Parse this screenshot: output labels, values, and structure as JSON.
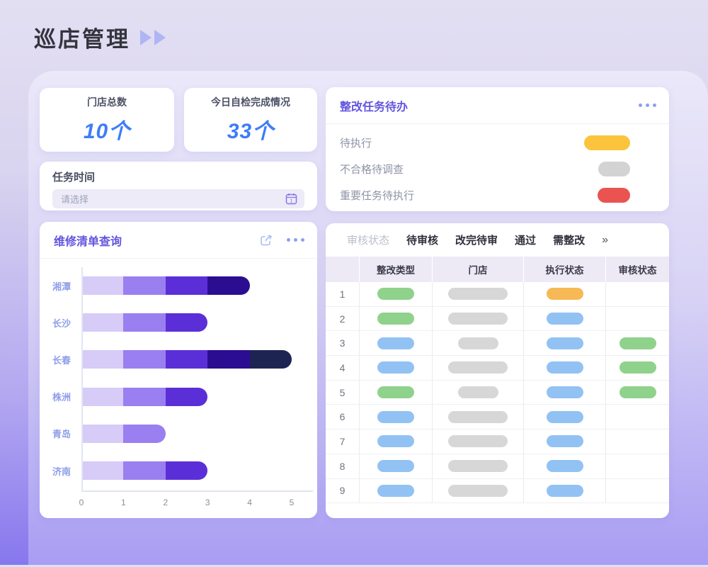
{
  "page": {
    "title": "巡店管理"
  },
  "stats": [
    {
      "label": "门店总数",
      "value": "10个"
    },
    {
      "label": "今日自检完成情况",
      "value": "33个"
    }
  ],
  "task_time": {
    "label": "任务时间",
    "placeholder": "请选择",
    "icon": "calendar-icon"
  },
  "repair_panel": {
    "title": "维修清单查询",
    "icons": [
      "share-icon",
      "more-icon"
    ]
  },
  "chart_data": {
    "type": "bar",
    "orientation": "horizontal-stacked",
    "title": "维修清单查询",
    "categories": [
      "湘潭",
      "长沙",
      "长春",
      "株洲",
      "青岛",
      "济南"
    ],
    "stacked_values": [
      [
        1,
        1,
        1,
        1
      ],
      [
        1,
        1,
        1
      ],
      [
        1,
        1,
        1,
        1,
        1
      ],
      [
        1,
        1,
        1
      ],
      [
        1,
        1
      ],
      [
        1,
        1,
        1
      ]
    ],
    "totals": [
      4,
      3,
      5,
      3,
      2,
      3
    ],
    "xlim": [
      0,
      5
    ],
    "x_ticks": [
      "0",
      "1",
      "2",
      "3",
      "4",
      "5"
    ],
    "grid": false,
    "segment_colors": [
      "#d7cbf7",
      "#9a7ff0",
      "#5b2fd8",
      "#2b0d92",
      "#1e2452"
    ],
    "label_color": "#8f9fe9"
  },
  "todo_panel": {
    "title": "整改任务待办",
    "more_icon": "more-icon",
    "items": [
      {
        "label": "待执行",
        "color": "#fcc43d",
        "pill_width": 65
      },
      {
        "label": "不合格待调查",
        "color": "#d3d3d3",
        "pill_width": 45
      },
      {
        "label": "重要任务待执行",
        "color": "#ea5350",
        "pill_width": 46
      }
    ]
  },
  "table_panel": {
    "filter_label": "审核状态",
    "tabs": [
      "待审核",
      "改完待审",
      "通过",
      "需整改"
    ],
    "overflow_glyph": "»",
    "columns": [
      "",
      "整改类型",
      "门店",
      "执行状态",
      "审核状态"
    ],
    "pill_colors": {
      "green": "#8fd28c",
      "blue": "#92c2f4",
      "orange": "#f6b955",
      "gray": "#d7d7d7"
    },
    "rows": [
      {
        "num": "1",
        "type": "green",
        "store_size": "wide",
        "exec": "orange",
        "review": ""
      },
      {
        "num": "2",
        "type": "green",
        "store_size": "wide",
        "exec": "blue",
        "review": ""
      },
      {
        "num": "3",
        "type": "blue",
        "store_size": "narrow",
        "exec": "blue",
        "review": "green"
      },
      {
        "num": "4",
        "type": "blue",
        "store_size": "wide",
        "exec": "blue",
        "review": "green"
      },
      {
        "num": "5",
        "type": "green",
        "store_size": "narrow",
        "exec": "blue",
        "review": "green"
      },
      {
        "num": "6",
        "type": "blue",
        "store_size": "wide",
        "exec": "blue",
        "review": ""
      },
      {
        "num": "7",
        "type": "blue",
        "store_size": "wide",
        "exec": "blue",
        "review": ""
      },
      {
        "num": "8",
        "type": "blue",
        "store_size": "wide",
        "exec": "blue",
        "review": ""
      },
      {
        "num": "9",
        "type": "blue",
        "store_size": "wide",
        "exec": "blue",
        "review": ""
      }
    ]
  }
}
